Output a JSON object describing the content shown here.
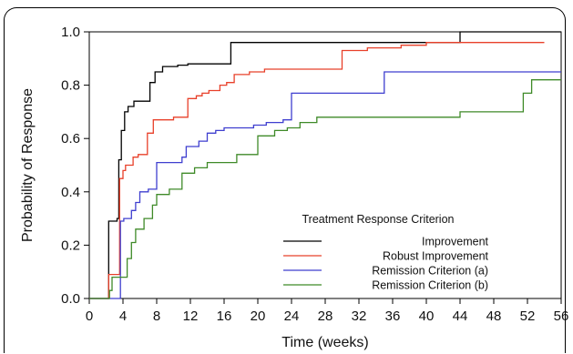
{
  "chart_data": {
    "type": "line",
    "step": true,
    "xlabel": "Time (weeks)",
    "ylabel": "Probability of Response",
    "xlim": [
      0,
      56
    ],
    "ylim": [
      0,
      1
    ],
    "xticks": [
      "0",
      "4",
      "8",
      "12",
      "16",
      "20",
      "24",
      "28",
      "32",
      "36",
      "40",
      "44",
      "48",
      "52",
      "56"
    ],
    "yticks": [
      "0.0",
      "0.2",
      "0.4",
      "0.6",
      "0.8",
      "1.0"
    ],
    "grid": false,
    "legend_title": "Treatment Response Criterion",
    "legend_position": "bottom-right",
    "series": [
      {
        "name": "Improvement",
        "color": "#000000",
        "points": [
          [
            0,
            0
          ],
          [
            2.3,
            0
          ],
          [
            2.3,
            0.29
          ],
          [
            3.3,
            0.29
          ],
          [
            3.3,
            0.3
          ],
          [
            3.5,
            0.3
          ],
          [
            3.5,
            0.52
          ],
          [
            3.8,
            0.52
          ],
          [
            3.8,
            0.63
          ],
          [
            4.2,
            0.63
          ],
          [
            4.2,
            0.7
          ],
          [
            4.6,
            0.7
          ],
          [
            4.6,
            0.72
          ],
          [
            5.3,
            0.72
          ],
          [
            5.3,
            0.74
          ],
          [
            7.2,
            0.74
          ],
          [
            7.2,
            0.81
          ],
          [
            7.8,
            0.81
          ],
          [
            7.8,
            0.85
          ],
          [
            8.7,
            0.85
          ],
          [
            8.7,
            0.87
          ],
          [
            10.5,
            0.87
          ],
          [
            10.5,
            0.875
          ],
          [
            11.7,
            0.875
          ],
          [
            11.7,
            0.88
          ],
          [
            16.8,
            0.88
          ],
          [
            16.8,
            0.96
          ],
          [
            44.0,
            0.96
          ],
          [
            44.0,
            1.0
          ],
          [
            56,
            1.0
          ]
        ]
      },
      {
        "name": "Robust Improvement",
        "color": "#e8402a",
        "points": [
          [
            0,
            0
          ],
          [
            2.3,
            0
          ],
          [
            2.3,
            0.09
          ],
          [
            3.6,
            0.09
          ],
          [
            3.6,
            0.45
          ],
          [
            4.0,
            0.45
          ],
          [
            4.0,
            0.48
          ],
          [
            4.3,
            0.48
          ],
          [
            4.3,
            0.5
          ],
          [
            5.2,
            0.5
          ],
          [
            5.2,
            0.53
          ],
          [
            5.8,
            0.53
          ],
          [
            5.8,
            0.54
          ],
          [
            6.9,
            0.54
          ],
          [
            6.9,
            0.62
          ],
          [
            7.6,
            0.62
          ],
          [
            7.6,
            0.67
          ],
          [
            10.0,
            0.67
          ],
          [
            10.0,
            0.68
          ],
          [
            11.7,
            0.68
          ],
          [
            11.7,
            0.75
          ],
          [
            12.7,
            0.75
          ],
          [
            12.7,
            0.76
          ],
          [
            13.4,
            0.76
          ],
          [
            13.4,
            0.77
          ],
          [
            14.2,
            0.77
          ],
          [
            14.2,
            0.78
          ],
          [
            15.5,
            0.78
          ],
          [
            15.5,
            0.8
          ],
          [
            16.3,
            0.8
          ],
          [
            16.3,
            0.81
          ],
          [
            17.2,
            0.81
          ],
          [
            17.2,
            0.84
          ],
          [
            19.0,
            0.84
          ],
          [
            19.0,
            0.85
          ],
          [
            20.8,
            0.85
          ],
          [
            20.8,
            0.86
          ],
          [
            30.0,
            0.86
          ],
          [
            30.0,
            0.93
          ],
          [
            33.0,
            0.93
          ],
          [
            33.0,
            0.94
          ],
          [
            37.0,
            0.94
          ],
          [
            37.0,
            0.95
          ],
          [
            40.0,
            0.95
          ],
          [
            40.0,
            0.96
          ],
          [
            54.0,
            0.96
          ]
        ]
      },
      {
        "name": "Remission Criterion (a)",
        "color": "#3f3fcf",
        "points": [
          [
            0,
            0
          ],
          [
            3.7,
            0
          ],
          [
            3.7,
            0.29
          ],
          [
            4.1,
            0.29
          ],
          [
            4.1,
            0.3
          ],
          [
            5.0,
            0.3
          ],
          [
            5.0,
            0.33
          ],
          [
            5.5,
            0.33
          ],
          [
            5.5,
            0.36
          ],
          [
            6.0,
            0.36
          ],
          [
            6.0,
            0.4
          ],
          [
            7.0,
            0.4
          ],
          [
            7.0,
            0.41
          ],
          [
            8.0,
            0.41
          ],
          [
            8.0,
            0.51
          ],
          [
            11.0,
            0.51
          ],
          [
            11.0,
            0.53
          ],
          [
            11.5,
            0.53
          ],
          [
            11.5,
            0.57
          ],
          [
            13.0,
            0.57
          ],
          [
            13.0,
            0.59
          ],
          [
            14.0,
            0.59
          ],
          [
            14.0,
            0.62
          ],
          [
            15.0,
            0.62
          ],
          [
            15.0,
            0.63
          ],
          [
            16.0,
            0.63
          ],
          [
            16.0,
            0.64
          ],
          [
            19.5,
            0.64
          ],
          [
            19.5,
            0.65
          ],
          [
            21.0,
            0.65
          ],
          [
            21.0,
            0.66
          ],
          [
            23.0,
            0.66
          ],
          [
            23.0,
            0.67
          ],
          [
            24.0,
            0.67
          ],
          [
            24.0,
            0.77
          ],
          [
            35.0,
            0.77
          ],
          [
            35.0,
            0.85
          ],
          [
            56,
            0.85
          ]
        ]
      },
      {
        "name": "Remission Criterion (b)",
        "color": "#3f8a28",
        "points": [
          [
            0,
            0
          ],
          [
            2.4,
            0
          ],
          [
            2.4,
            0.03
          ],
          [
            2.7,
            0.03
          ],
          [
            2.7,
            0.08
          ],
          [
            4.5,
            0.08
          ],
          [
            4.5,
            0.15
          ],
          [
            5.0,
            0.15
          ],
          [
            5.0,
            0.21
          ],
          [
            5.5,
            0.21
          ],
          [
            5.5,
            0.26
          ],
          [
            6.5,
            0.26
          ],
          [
            6.5,
            0.3
          ],
          [
            7.5,
            0.3
          ],
          [
            7.5,
            0.35
          ],
          [
            8.0,
            0.35
          ],
          [
            8.0,
            0.39
          ],
          [
            9.5,
            0.39
          ],
          [
            9.5,
            0.41
          ],
          [
            11.0,
            0.41
          ],
          [
            11.0,
            0.47
          ],
          [
            12.5,
            0.47
          ],
          [
            12.5,
            0.49
          ],
          [
            14.0,
            0.49
          ],
          [
            14.0,
            0.51
          ],
          [
            17.5,
            0.51
          ],
          [
            17.5,
            0.54
          ],
          [
            20.0,
            0.54
          ],
          [
            20.0,
            0.61
          ],
          [
            22.0,
            0.61
          ],
          [
            22.0,
            0.63
          ],
          [
            23.5,
            0.63
          ],
          [
            23.5,
            0.64
          ],
          [
            25.0,
            0.64
          ],
          [
            25.0,
            0.66
          ],
          [
            27.0,
            0.66
          ],
          [
            27.0,
            0.68
          ],
          [
            44.0,
            0.68
          ],
          [
            44.0,
            0.7
          ],
          [
            51.5,
            0.7
          ],
          [
            51.5,
            0.77
          ],
          [
            52.5,
            0.77
          ],
          [
            52.5,
            0.82
          ],
          [
            56,
            0.82
          ]
        ]
      }
    ]
  }
}
